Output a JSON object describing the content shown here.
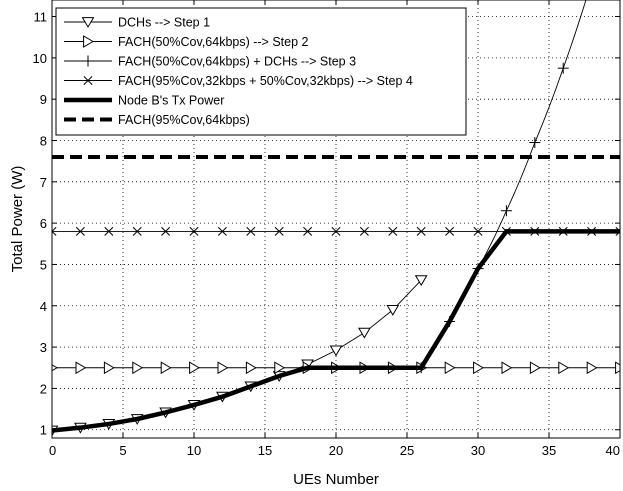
{
  "chart_data": {
    "type": "line",
    "xlabel": "UEs Number",
    "ylabel": "Total Power (W)",
    "xlim": [
      0,
      40
    ],
    "ylim": [
      0.8,
      11.4
    ],
    "xticks": [
      0,
      5,
      10,
      15,
      20,
      25,
      30,
      35,
      40
    ],
    "yticks": [
      1,
      2,
      3,
      4,
      5,
      6,
      7,
      8,
      9,
      10,
      11
    ],
    "grid": true,
    "legend_position": "top-left",
    "series": [
      {
        "name": "DCHs --> Step 1",
        "marker": "triangle-down",
        "line": "thin",
        "x": [
          0,
          2,
          4,
          6,
          8,
          10,
          12,
          14,
          16,
          18,
          20,
          22,
          24,
          26
        ],
        "y": [
          0.98,
          1.05,
          1.14,
          1.26,
          1.42,
          1.6,
          1.8,
          2.05,
          2.3,
          2.58,
          2.92,
          3.35,
          3.9,
          4.62
        ]
      },
      {
        "name": "FACH(50%Cov,64kbps) --> Step 2",
        "marker": "triangle-right",
        "line": "thin",
        "x": [
          0,
          2,
          4,
          6,
          8,
          10,
          12,
          14,
          16,
          18,
          20,
          22,
          24,
          26,
          28,
          30,
          32,
          34,
          36,
          38,
          40
        ],
        "y": [
          2.5,
          2.5,
          2.5,
          2.5,
          2.5,
          2.5,
          2.5,
          2.5,
          2.5,
          2.5,
          2.5,
          2.5,
          2.5,
          2.5,
          2.5,
          2.5,
          2.5,
          2.5,
          2.5,
          2.5,
          2.5
        ]
      },
      {
        "name": "FACH(50%Cov,64kbps) + DCHs --> Step 3",
        "marker": "plus",
        "line": "thin",
        "x": [
          26,
          28,
          30,
          32,
          34,
          36,
          37.6
        ],
        "y": [
          2.5,
          3.62,
          4.9,
          6.3,
          7.95,
          9.75,
          11.4
        ]
      },
      {
        "name": "FACH(95%Cov,32kbps + 50%Cov,32kbps) --> Step 4",
        "marker": "x",
        "line": "thin",
        "x": [
          0,
          2,
          4,
          6,
          8,
          10,
          12,
          14,
          16,
          18,
          20,
          22,
          24,
          26,
          28,
          30,
          32,
          34,
          36,
          38,
          40
        ],
        "y": [
          5.8,
          5.8,
          5.8,
          5.8,
          5.8,
          5.8,
          5.8,
          5.8,
          5.8,
          5.8,
          5.8,
          5.8,
          5.8,
          5.8,
          5.8,
          5.8,
          5.8,
          5.8,
          5.8,
          5.8,
          5.8
        ]
      },
      {
        "name": "Node B's Tx Power",
        "marker": "none",
        "line": "thick",
        "x": [
          0,
          2,
          4,
          6,
          8,
          10,
          12,
          14,
          16,
          18,
          20,
          22,
          24,
          26,
          28,
          30,
          32,
          34,
          36,
          38,
          40
        ],
        "y": [
          0.98,
          1.05,
          1.14,
          1.26,
          1.42,
          1.6,
          1.8,
          2.05,
          2.3,
          2.5,
          2.5,
          2.5,
          2.5,
          2.5,
          3.62,
          4.9,
          5.8,
          5.8,
          5.8,
          5.8,
          5.8
        ]
      },
      {
        "name": "FACH(95%Cov,64kbps)",
        "marker": "none",
        "line": "thick-dashed",
        "x": [
          0,
          40
        ],
        "y": [
          7.6,
          7.6
        ]
      }
    ]
  }
}
